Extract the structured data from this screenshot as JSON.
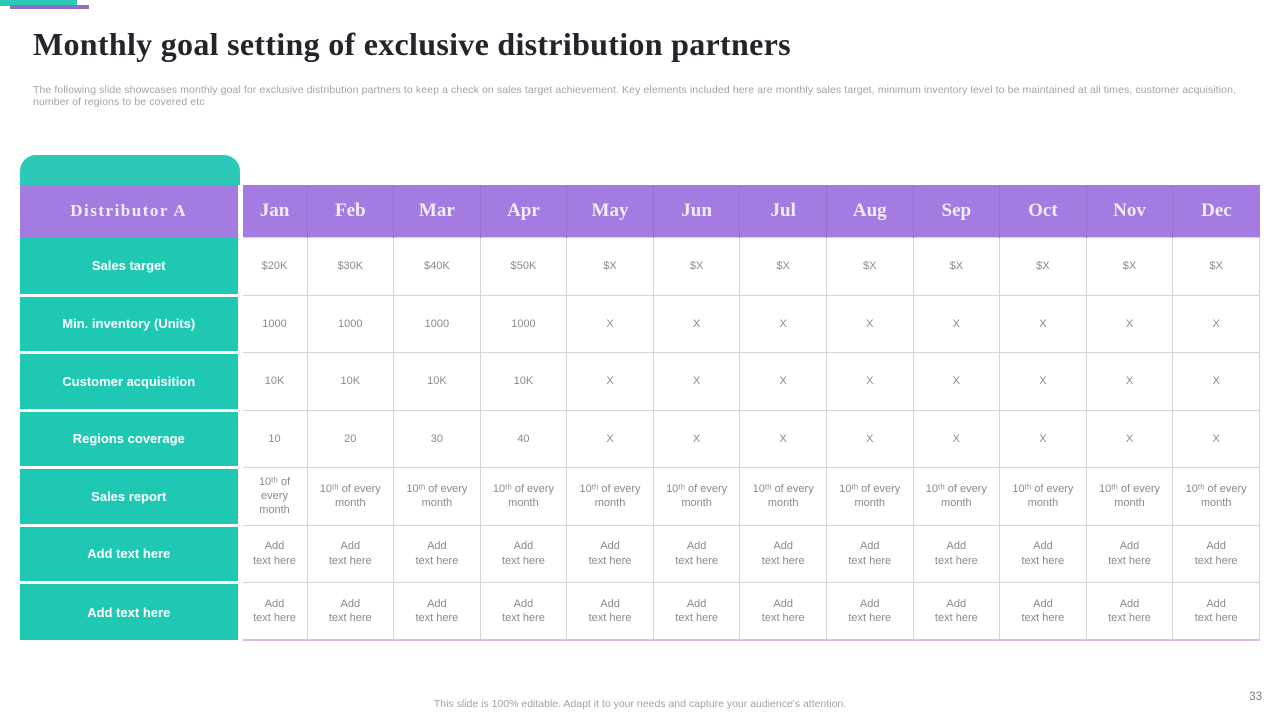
{
  "slide": {
    "title": "Monthly goal setting of exclusive distribution partners",
    "subtitle": "The following slide showcases monthly goal for exclusive distribution partners to keep a check on sales target achievement. Key elements included here are monthly sales target, minimum inventory level to be maintained at all times, customer acquisition, number of regions to be covered etc",
    "footer": "This slide is 100% editable. Adapt it to your needs and capture your audience's attention.",
    "page_number": "33"
  },
  "theme": {
    "teal": "#1FC8B3",
    "teal_tab": "#2CC9B8",
    "purple_header": "#A47BE1",
    "purple_accent": "#8D6FC0",
    "grid_border": "#D6D6D6",
    "cell_text": "#8A8A8A",
    "table_bottom_line": "#D9BDEF",
    "title_color": "#25232B",
    "muted_text": "#A3A3A3"
  },
  "table": {
    "distributor": "Distributor A",
    "months": [
      "Jan",
      "Feb",
      "Mar",
      "Apr",
      "May",
      "Jun",
      "Jul",
      "Aug",
      "Sep",
      "Oct",
      "Nov",
      "Dec"
    ],
    "rows": [
      {
        "label": "Sales target",
        "cells": [
          "$20K",
          "$30K",
          "$40K",
          "$50K",
          "$X",
          "$X",
          "$X",
          "$X",
          "$X",
          "$X",
          "$X",
          "$X"
        ]
      },
      {
        "label": "Min. inventory (Units)",
        "cells": [
          "1000",
          "1000",
          "1000",
          "1000",
          "X",
          "X",
          "X",
          "X",
          "X",
          "X",
          "X",
          "X"
        ]
      },
      {
        "label": "Customer acquisition",
        "cells": [
          "10K",
          "10K",
          "10K",
          "10K",
          "X",
          "X",
          "X",
          "X",
          "X",
          "X",
          "X",
          "X"
        ]
      },
      {
        "label": "Regions coverage",
        "cells": [
          "10",
          "20",
          "30",
          "40",
          "X",
          "X",
          "X",
          "X",
          "X",
          "X",
          "X",
          "X"
        ]
      },
      {
        "label": "Sales report",
        "cells": [
          "10ᵗʰ of every month",
          "10ᵗʰ of every month",
          "10ᵗʰ of every month",
          "10ᵗʰ of every month",
          "10ᵗʰ of every month",
          "10ᵗʰ of every month",
          "10ᵗʰ of every month",
          "10ᵗʰ of every month",
          "10ᵗʰ of every month",
          "10ᵗʰ of every month",
          "10ᵗʰ of every month",
          "10ᵗʰ of every month"
        ]
      },
      {
        "label": "Add text here",
        "cells": [
          "Add\ntext here",
          "Add\ntext here",
          "Add\ntext here",
          "Add\ntext here",
          "Add\ntext here",
          "Add\ntext here",
          "Add\ntext here",
          "Add\ntext here",
          "Add\ntext here",
          "Add\ntext here",
          "Add\ntext here",
          "Add\ntext here"
        ]
      },
      {
        "label": "Add text here",
        "cells": [
          "Add\ntext here",
          "Add\ntext here",
          "Add\ntext here",
          "Add\ntext here",
          "Add\ntext here",
          "Add\ntext here",
          "Add\ntext here",
          "Add\ntext here",
          "Add\ntext here",
          "Add\ntext here",
          "Add\ntext here",
          "Add\ntext here"
        ]
      }
    ]
  }
}
